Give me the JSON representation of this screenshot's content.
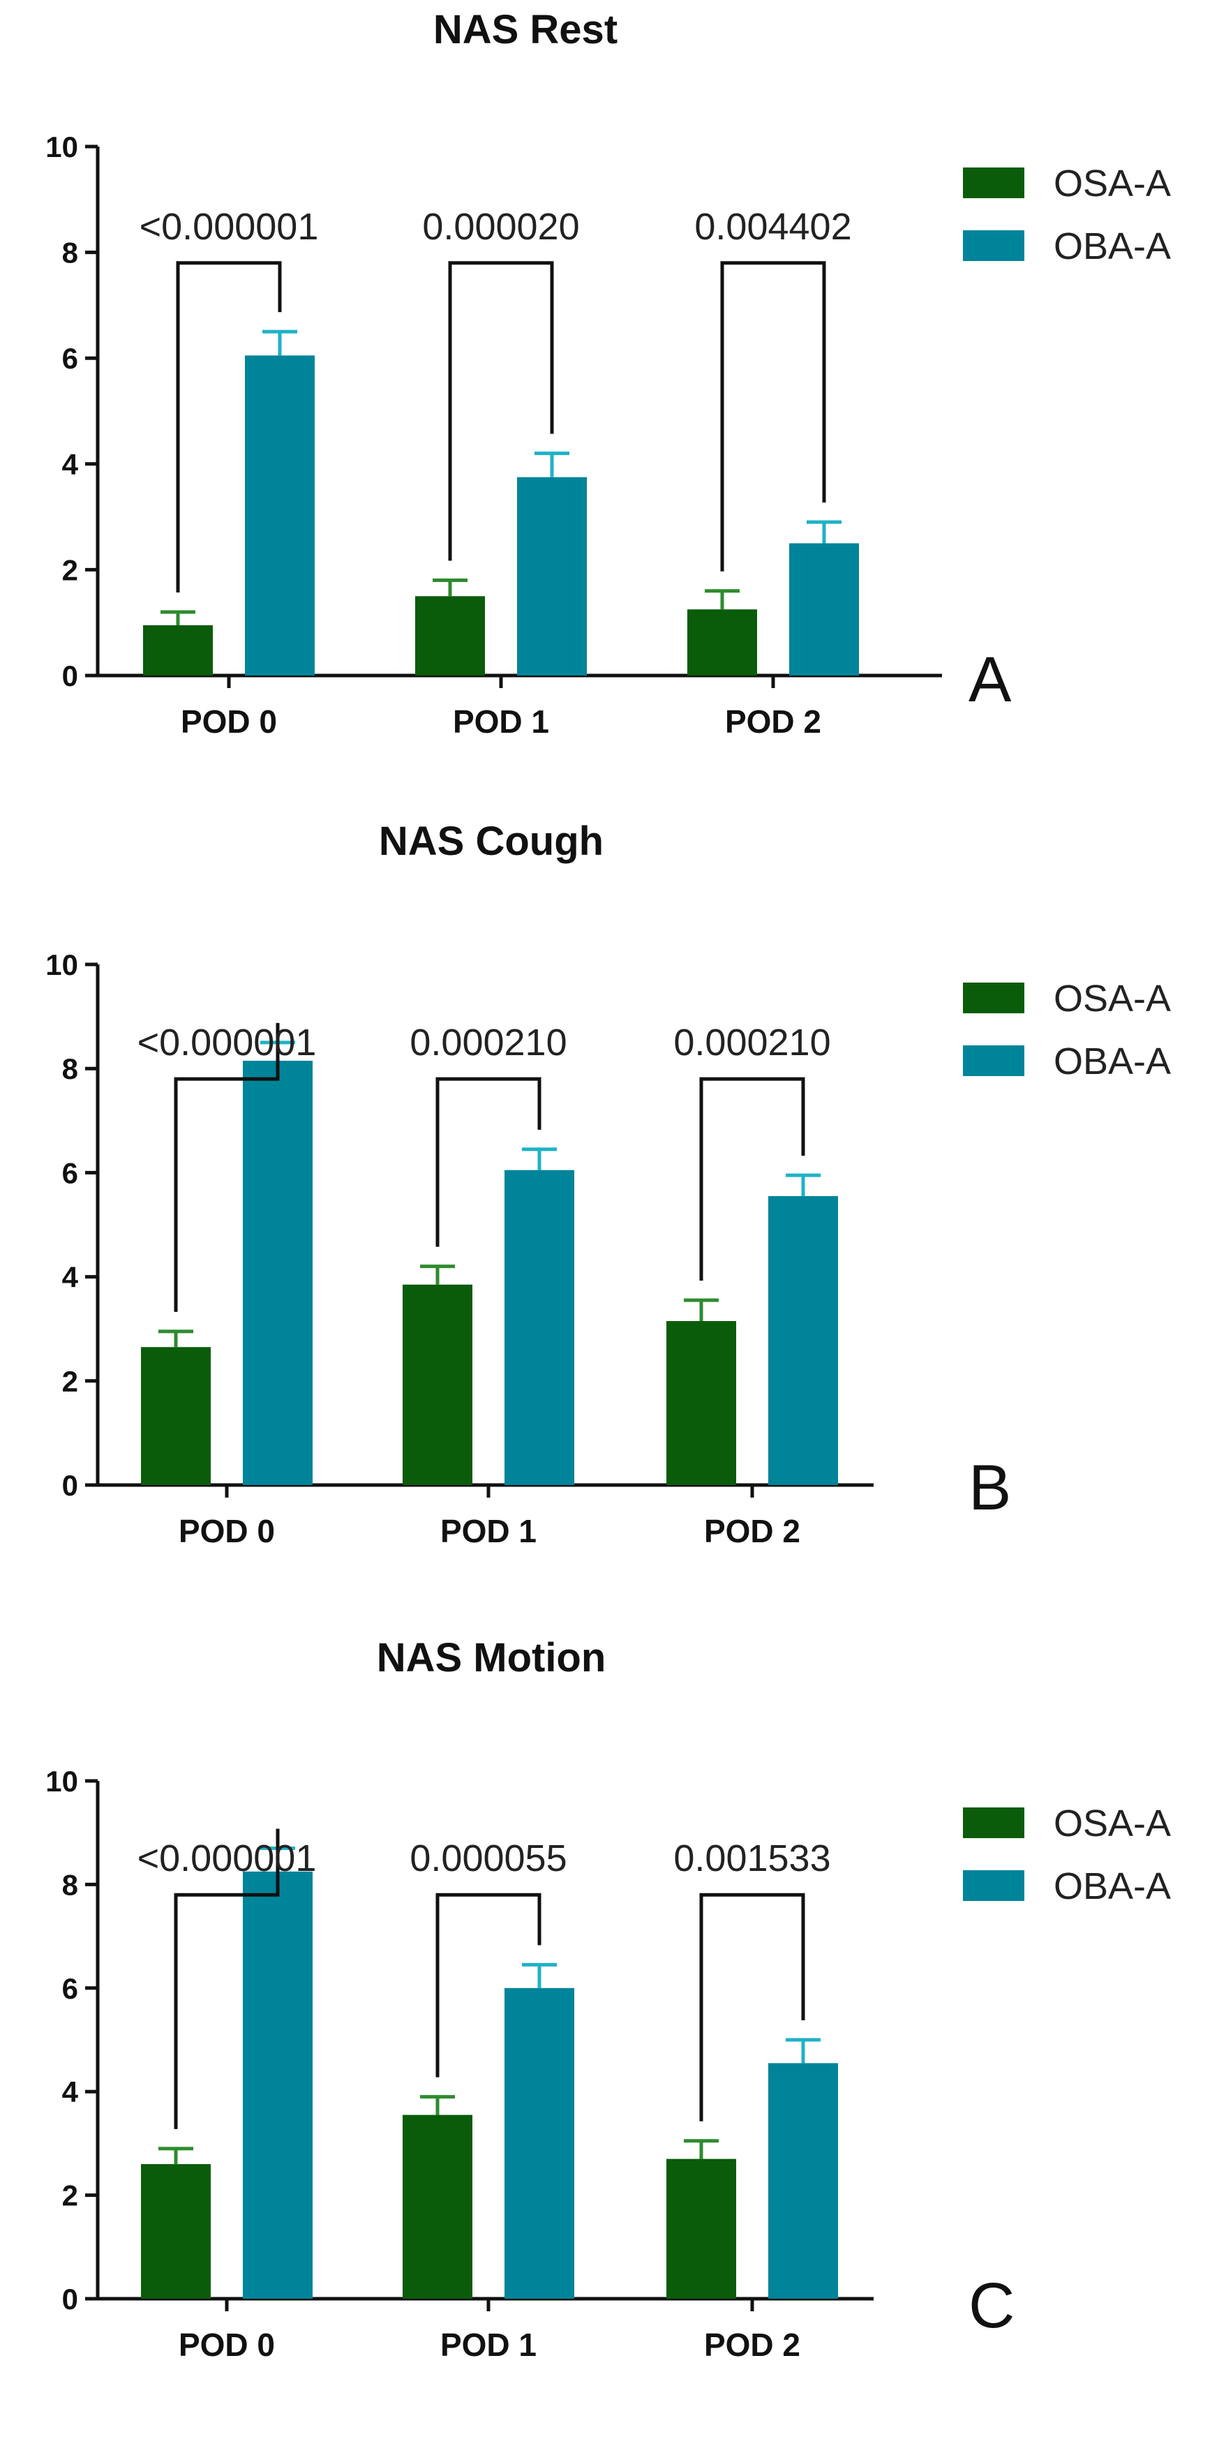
{
  "chart_data": [
    {
      "type": "bar",
      "title": "NAS Rest",
      "panel_label": "A",
      "categories": [
        "POD 0",
        "POD 1",
        "POD 2"
      ],
      "ylim": [
        0,
        10
      ],
      "yticks": [
        "0",
        "2",
        "4",
        "6",
        "8",
        "10"
      ],
      "series": [
        {
          "name": "OSA-A",
          "color": "#0a5c0a",
          "errcolor": "#2e8b2e",
          "values": [
            0.95,
            1.5,
            1.25
          ],
          "errors": [
            0.25,
            0.3,
            0.35
          ]
        },
        {
          "name": "OBA-A",
          "color": "#00849a",
          "errcolor": "#1fb2c6",
          "values": [
            6.05,
            3.75,
            2.5
          ],
          "errors": [
            0.45,
            0.45,
            0.4
          ]
        }
      ],
      "p_values": [
        "<0.000001",
        "0.000020",
        "0.004402"
      ],
      "legend": {
        "position": "top-right",
        "entries": [
          "OSA-A",
          "OBA-A"
        ]
      }
    },
    {
      "type": "bar",
      "title": "NAS Cough",
      "panel_label": "B",
      "categories": [
        "POD 0",
        "POD 1",
        "POD 2"
      ],
      "ylim": [
        0,
        10
      ],
      "yticks": [
        "0",
        "2",
        "4",
        "6",
        "8",
        "10"
      ],
      "series": [
        {
          "name": "OSA-A",
          "color": "#0a5c0a",
          "errcolor": "#2e8b2e",
          "values": [
            2.65,
            3.85,
            3.15
          ],
          "errors": [
            0.3,
            0.35,
            0.4
          ]
        },
        {
          "name": "OBA-A",
          "color": "#00849a",
          "errcolor": "#1fb2c6",
          "values": [
            8.15,
            6.05,
            5.55
          ],
          "errors": [
            0.35,
            0.4,
            0.4
          ]
        }
      ],
      "p_values": [
        "<0.000001",
        "0.000210",
        "0.000210"
      ],
      "legend": {
        "position": "top-right",
        "entries": [
          "OSA-A",
          "OBA-A"
        ]
      }
    },
    {
      "type": "bar",
      "title": "NAS Motion",
      "panel_label": "C",
      "categories": [
        "POD 0",
        "POD 1",
        "POD 2"
      ],
      "ylim": [
        0,
        10
      ],
      "yticks": [
        "0",
        "2",
        "4",
        "6",
        "8",
        "10"
      ],
      "series": [
        {
          "name": "OSA-A",
          "color": "#0a5c0a",
          "errcolor": "#2e8b2e",
          "values": [
            2.6,
            3.55,
            2.7
          ],
          "errors": [
            0.3,
            0.35,
            0.35
          ]
        },
        {
          "name": "OBA-A",
          "color": "#00849a",
          "errcolor": "#1fb2c6",
          "values": [
            8.25,
            6.0,
            4.55
          ],
          "errors": [
            0.45,
            0.45,
            0.45
          ]
        }
      ],
      "p_values": [
        "<0.000001",
        "0.000055",
        "0.001533"
      ],
      "legend": {
        "position": "top-right",
        "entries": [
          "OSA-A",
          "OBA-A"
        ]
      }
    }
  ]
}
